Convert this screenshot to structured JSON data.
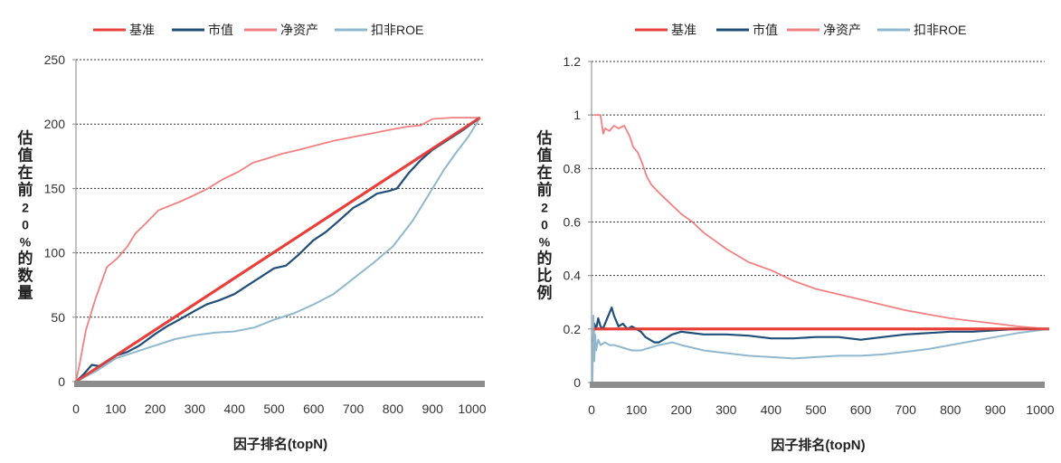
{
  "chart_data": [
    {
      "type": "line",
      "title": "",
      "xlabel": "因子排名(topN)",
      "ylabel": "估值在前20%的数量",
      "xlim": [
        0,
        1020
      ],
      "ylim": [
        0,
        250
      ],
      "xticks": [
        0,
        100,
        200,
        300,
        400,
        500,
        600,
        700,
        800,
        900,
        1000
      ],
      "yticks": [
        0,
        50,
        100,
        150,
        200,
        250
      ],
      "ytick_labels": [
        "0",
        "50",
        "100",
        "150",
        "200",
        "250"
      ],
      "grid": true,
      "legend_position": "top",
      "series": [
        {
          "name": "基准",
          "color": "#e8403a",
          "width": 3,
          "x": [
            0,
            1020
          ],
          "y": [
            0,
            205
          ]
        },
        {
          "name": "市值",
          "color": "#1f4e79",
          "width": 2.2,
          "x": [
            0,
            20,
            40,
            60,
            80,
            100,
            130,
            160,
            200,
            230,
            260,
            300,
            330,
            360,
            400,
            430,
            460,
            500,
            530,
            560,
            600,
            630,
            660,
            700,
            730,
            760,
            790,
            810,
            840,
            870,
            900,
            940,
            980,
            1020
          ],
          "y": [
            0,
            6,
            13,
            12,
            16,
            20,
            23,
            28,
            37,
            43,
            48,
            55,
            60,
            63,
            68,
            74,
            80,
            88,
            90,
            98,
            110,
            116,
            124,
            135,
            140,
            146,
            148,
            150,
            162,
            172,
            180,
            188,
            196,
            205
          ]
        },
        {
          "name": "净资产",
          "color": "#f28080",
          "width": 1.8,
          "x": [
            0,
            10,
            25,
            50,
            78,
            105,
            130,
            150,
            180,
            208,
            240,
            265,
            300,
            333,
            370,
            410,
            447,
            480,
            520,
            562,
            600,
            650,
            700,
            750,
            800,
            836,
            870,
            900,
            950,
            1020
          ],
          "y": [
            0,
            15,
            40,
            65,
            89,
            96,
            105,
            115,
            124,
            133,
            137,
            140,
            145,
            150,
            157,
            163,
            170,
            173,
            177,
            180,
            183,
            187,
            190,
            193,
            196,
            198,
            199,
            204,
            205,
            205
          ]
        },
        {
          "name": "扣非ROE",
          "color": "#8fb8cf",
          "width": 2,
          "x": [
            0,
            50,
            100,
            150,
            200,
            250,
            300,
            350,
            400,
            450,
            500,
            550,
            600,
            650,
            700,
            750,
            800,
            850,
            900,
            930,
            960,
            990,
            1020
          ],
          "y": [
            0,
            8,
            18,
            23,
            28,
            33,
            36,
            38,
            39,
            42,
            48,
            53,
            60,
            68,
            80,
            92,
            105,
            125,
            150,
            165,
            178,
            190,
            205
          ]
        }
      ]
    },
    {
      "type": "line",
      "title": "",
      "xlabel": "因子排名(topN)",
      "ylabel": "估值在前20%的比例",
      "xlim": [
        0,
        1020
      ],
      "ylim": [
        0,
        1.2
      ],
      "xticks": [
        0,
        100,
        200,
        300,
        400,
        500,
        600,
        700,
        800,
        900,
        1000
      ],
      "yticks": [
        0,
        0.2,
        0.4,
        0.6,
        0.8,
        1.0,
        1.2
      ],
      "ytick_labels": [
        "0",
        "0.2",
        "0.4",
        "0.6",
        "0.8",
        "1",
        "1.2"
      ],
      "grid": true,
      "legend_position": "top",
      "series": [
        {
          "name": "基准",
          "color": "#e8403a",
          "width": 3,
          "x": [
            5,
            1020
          ],
          "y": [
            0.2,
            0.2
          ]
        },
        {
          "name": "市值",
          "color": "#1f4e79",
          "width": 2.2,
          "x": [
            3,
            6,
            10,
            15,
            20,
            25,
            30,
            40,
            45,
            50,
            60,
            70,
            80,
            90,
            100,
            110,
            120,
            130,
            140,
            150,
            160,
            180,
            200,
            250,
            300,
            350,
            400,
            450,
            500,
            550,
            600,
            650,
            700,
            750,
            800,
            850,
            900,
            950,
            1020
          ],
          "y": [
            0.15,
            0.22,
            0.2,
            0.24,
            0.21,
            0.2,
            0.22,
            0.26,
            0.28,
            0.25,
            0.21,
            0.22,
            0.2,
            0.21,
            0.2,
            0.19,
            0.17,
            0.16,
            0.15,
            0.15,
            0.16,
            0.18,
            0.19,
            0.18,
            0.18,
            0.175,
            0.165,
            0.165,
            0.17,
            0.17,
            0.16,
            0.17,
            0.18,
            0.185,
            0.19,
            0.19,
            0.195,
            0.2,
            0.2
          ]
        },
        {
          "name": "净资产",
          "color": "#f28080",
          "width": 1.8,
          "x": [
            5,
            20,
            26,
            30,
            40,
            50,
            60,
            73,
            85,
            93,
            103,
            113,
            123,
            133,
            150,
            175,
            200,
            225,
            250,
            300,
            350,
            400,
            450,
            500,
            550,
            600,
            650,
            700,
            750,
            800,
            850,
            900,
            950,
            1020
          ],
          "y": [
            1.0,
            1.0,
            0.93,
            0.95,
            0.94,
            0.96,
            0.95,
            0.96,
            0.92,
            0.88,
            0.86,
            0.82,
            0.77,
            0.74,
            0.71,
            0.67,
            0.63,
            0.6,
            0.56,
            0.5,
            0.45,
            0.42,
            0.38,
            0.35,
            0.33,
            0.31,
            0.29,
            0.27,
            0.255,
            0.24,
            0.23,
            0.22,
            0.21,
            0.2
          ]
        },
        {
          "name": "扣非ROE",
          "color": "#8fb8cf",
          "width": 2,
          "x": [
            2,
            4,
            6,
            8,
            10,
            15,
            20,
            30,
            40,
            50,
            70,
            90,
            110,
            130,
            150,
            180,
            200,
            250,
            300,
            350,
            400,
            450,
            500,
            550,
            600,
            650,
            700,
            750,
            800,
            850,
            900,
            950,
            1020
          ],
          "y": [
            0.0,
            0.25,
            0.08,
            0.18,
            0.12,
            0.16,
            0.14,
            0.15,
            0.14,
            0.14,
            0.13,
            0.12,
            0.12,
            0.13,
            0.14,
            0.15,
            0.14,
            0.12,
            0.11,
            0.1,
            0.095,
            0.09,
            0.095,
            0.1,
            0.1,
            0.105,
            0.115,
            0.125,
            0.14,
            0.155,
            0.17,
            0.185,
            0.2
          ]
        }
      ]
    }
  ]
}
